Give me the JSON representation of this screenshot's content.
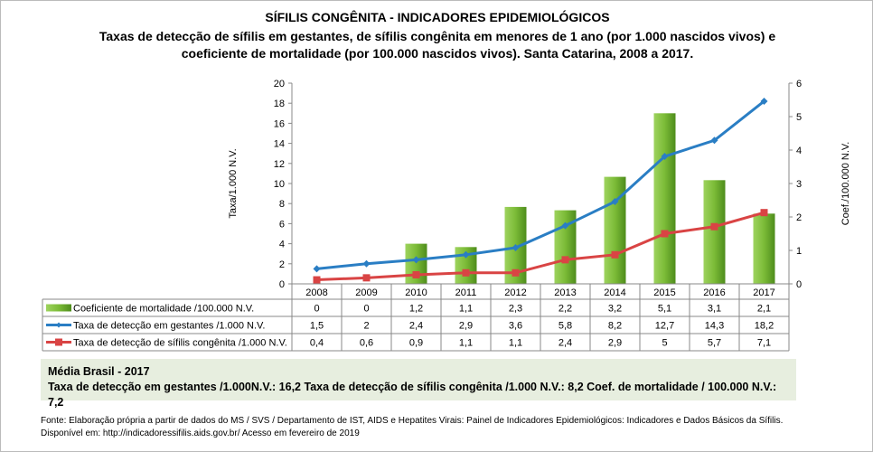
{
  "title": "SÍFILIS CONGÊNITA - INDICADORES EPIDEMIOLÓGICOS",
  "subtitle": "Taxas de detecção de sífilis em gestantes, de sífilis congênita em menores de 1 ano (por 1.000 nascidos vivos) e coeficiente de mortalidade (por 100.000 nascidos vivos). Santa Catarina, 2008 a 2017.",
  "chart_data": {
    "type": "bar+line",
    "categories": [
      "2008",
      "2009",
      "2010",
      "2011",
      "2012",
      "2013",
      "2014",
      "2015",
      "2016",
      "2017"
    ],
    "ylabel": "Taxa/1.000 N.V.",
    "ylim": [
      0,
      20
    ],
    "yticks": [
      "0",
      "2",
      "4",
      "6",
      "8",
      "10",
      "12",
      "14",
      "16",
      "18",
      "20"
    ],
    "y2label": "Coef./100.000 N.V.",
    "y2lim": [
      0,
      6
    ],
    "y2ticks": [
      "0",
      "1",
      "2",
      "3",
      "4",
      "5",
      "6"
    ],
    "legend": "data-table",
    "series": [
      {
        "name": "Coeficiente de mortalidade /100.000 N.V.",
        "type": "bar",
        "axis": "right",
        "color": "#6aaa2a",
        "values": [
          0,
          0,
          1.2,
          1.1,
          2.3,
          2.2,
          3.2,
          5.1,
          3.1,
          2.1
        ],
        "labels": [
          "0",
          "0",
          "1,2",
          "1,1",
          "2,3",
          "2,2",
          "3,2",
          "5,1",
          "3,1",
          "2,1"
        ]
      },
      {
        "name": "Taxa de detecção em gestantes /1.000 N.V.",
        "type": "line",
        "axis": "left",
        "color": "#2a7ec4",
        "values": [
          1.5,
          2,
          2.4,
          2.9,
          3.6,
          5.8,
          8.2,
          12.7,
          14.3,
          18.2
        ],
        "labels": [
          "1,5",
          "2",
          "2,4",
          "2,9",
          "3,6",
          "5,8",
          "8,2",
          "12,7",
          "14,3",
          "18,2"
        ]
      },
      {
        "name": "Taxa de detecção de sífilis congênita /1.000 N.V.",
        "type": "line",
        "axis": "left",
        "color": "#d94444",
        "values": [
          0.4,
          0.6,
          0.9,
          1.1,
          1.1,
          2.4,
          2.9,
          5,
          5.7,
          7.1
        ],
        "labels": [
          "0,4",
          "0,6",
          "0,9",
          "1,1",
          "1,1",
          "2,4",
          "2,9",
          "5",
          "5,7",
          "7,1"
        ]
      }
    ]
  },
  "average": {
    "heading": "Média Brasil  - 2017",
    "line": "Taxa  de detecção  em gestantes /1.000N.V.: 16,2   Taxa  de detecção  de sífilis  congênita  /1.000 N.V.: 8,2    Coef. de  mortalidade  / 100.000 N.V.: 7,2"
  },
  "source": {
    "line1": "Fonte: Elaboração própria a partir de dados do MS / SVS / Departamento de IST, AIDS e Hepatites Virais:  Painel de Indicadores Epidemiológicos: Indicadores e Dados Básicos da Sífilis.",
    "line2": "Disponível em: http://indicadoressifilis.aids.gov.br/    Acesso em fevereiro de 2019"
  }
}
